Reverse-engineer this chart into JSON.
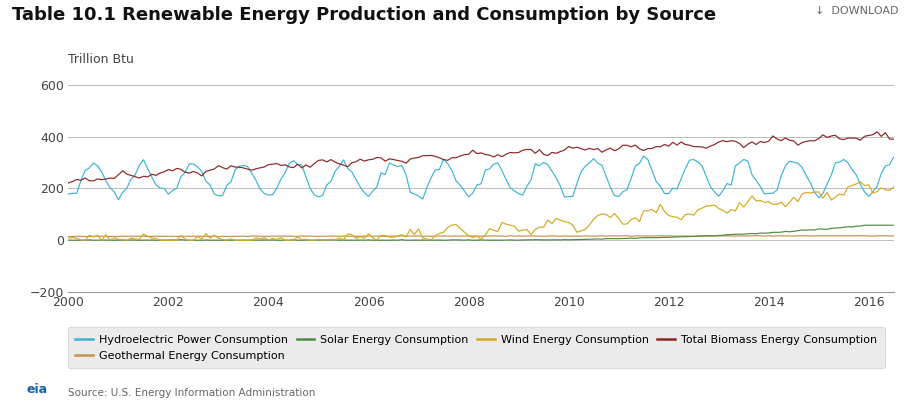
{
  "title": "Table 10.1 Renewable Energy Production and Consumption by Source",
  "ylabel": "Trillion Btu",
  "source": "Source: U.S. Energy Information Administration",
  "download_text": "↓  DOWNLOAD",
  "ylim": [
    -200,
    650
  ],
  "xlim": [
    2000,
    2016.5
  ],
  "yticks": [
    -200,
    0,
    200,
    400,
    600
  ],
  "xticks": [
    2000,
    2002,
    2004,
    2006,
    2008,
    2010,
    2012,
    2014,
    2016
  ],
  "colors": {
    "hydro": "#3cb4d4",
    "geothermal": "#c89050",
    "solar": "#4a8c3f",
    "wind": "#d4a820",
    "biomass": "#8b2525"
  },
  "legend": [
    {
      "label": "Hydroelectric Power Consumption",
      "color": "#3cb4d4"
    },
    {
      "label": "Geothermal Energy Consumption",
      "color": "#c89050"
    },
    {
      "label": "Solar Energy Consumption",
      "color": "#4a8c3f"
    },
    {
      "label": "Wind Energy Consumption",
      "color": "#d4a820"
    },
    {
      "label": "Total Biomass Energy Consumption",
      "color": "#8b2525"
    }
  ],
  "background_color": "#ffffff",
  "grid_color": "#bbbbbb",
  "title_fontsize": 13,
  "axis_fontsize": 9,
  "legend_fontsize": 8
}
